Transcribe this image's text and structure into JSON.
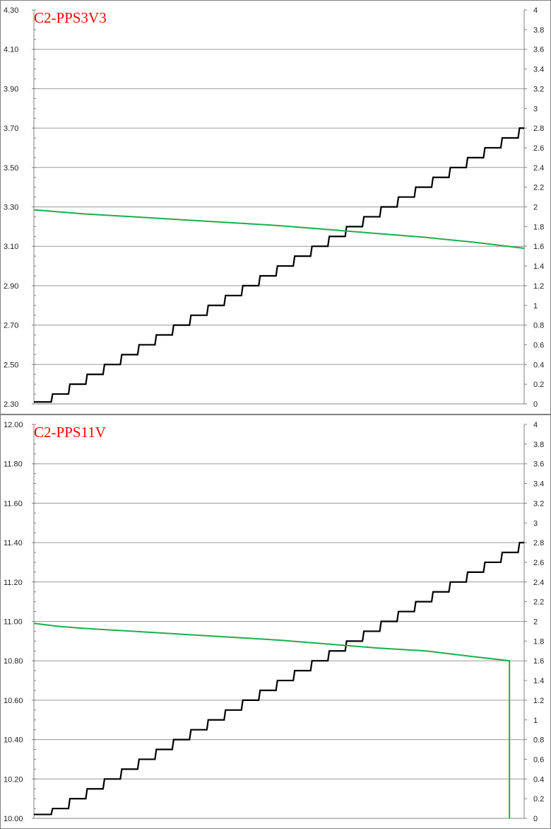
{
  "chart_data": [
    {
      "type": "line",
      "title": "C2-PPS3V3",
      "left_axis": {
        "ticks": [
          "4.30",
          "4.10",
          "3.90",
          "3.70",
          "3.50",
          "3.30",
          "3.10",
          "2.90",
          "2.70",
          "2.50",
          "2.30"
        ],
        "min": 2.3,
        "max": 4.3
      },
      "right_axis": {
        "ticks": [
          "4",
          "3.8",
          "3.6",
          "3.4",
          "3.2",
          "3",
          "2.8",
          "2.6",
          "2.4",
          "2.2",
          "2",
          "1.8",
          "1.6",
          "1.4",
          "1.2",
          "1",
          "0.8",
          "0.6",
          "0.4",
          "0.2",
          "0"
        ],
        "min": 0,
        "max": 4
      },
      "grid": true,
      "series": [
        {
          "axis": "right",
          "color": "#000000",
          "style": "staircase",
          "x_range": [
            0,
            1
          ],
          "start": 0.02,
          "end": 2.8,
          "steps": 28,
          "step_size": 0.1
        },
        {
          "axis": "left",
          "color": "#18b04a",
          "x": [
            0,
            0.05,
            0.1,
            0.2,
            0.3,
            0.4,
            0.5,
            0.6,
            0.7,
            0.8,
            0.9,
            1.0
          ],
          "values": [
            3.285,
            3.275,
            3.265,
            3.25,
            3.235,
            3.22,
            3.205,
            3.185,
            3.165,
            3.145,
            3.12,
            3.09
          ]
        }
      ]
    },
    {
      "type": "line",
      "title": "C2-PPS11V",
      "left_axis": {
        "ticks": [
          "12.00",
          "11.80",
          "11.60",
          "11.40",
          "11.20",
          "11.00",
          "10.80",
          "10.60",
          "10.40",
          "10.20",
          "10.00"
        ],
        "min": 10.0,
        "max": 12.0
      },
      "right_axis": {
        "ticks": [
          "4",
          "3.8",
          "3.6",
          "3.4",
          "3.2",
          "3",
          "2.8",
          "2.6",
          "2.4",
          "2.2",
          "2",
          "1.8",
          "1.6",
          "1.4",
          "1.2",
          "1",
          "0.8",
          "0.6",
          "0.4",
          "0.2",
          "0"
        ],
        "min": 0,
        "max": 4
      },
      "grid": true,
      "series": [
        {
          "axis": "right",
          "color": "#000000",
          "style": "staircase",
          "x_range": [
            0,
            1
          ],
          "start": 0.04,
          "end": 2.8,
          "steps": 28,
          "step_size": 0.1
        },
        {
          "axis": "left",
          "color": "#18b04a",
          "x": [
            0,
            0.05,
            0.1,
            0.2,
            0.3,
            0.4,
            0.5,
            0.6,
            0.7,
            0.8,
            0.9,
            0.97,
            0.97
          ],
          "values": [
            10.99,
            10.975,
            10.965,
            10.95,
            10.935,
            10.92,
            10.905,
            10.885,
            10.865,
            10.85,
            10.82,
            10.8,
            10.0
          ]
        }
      ]
    }
  ]
}
